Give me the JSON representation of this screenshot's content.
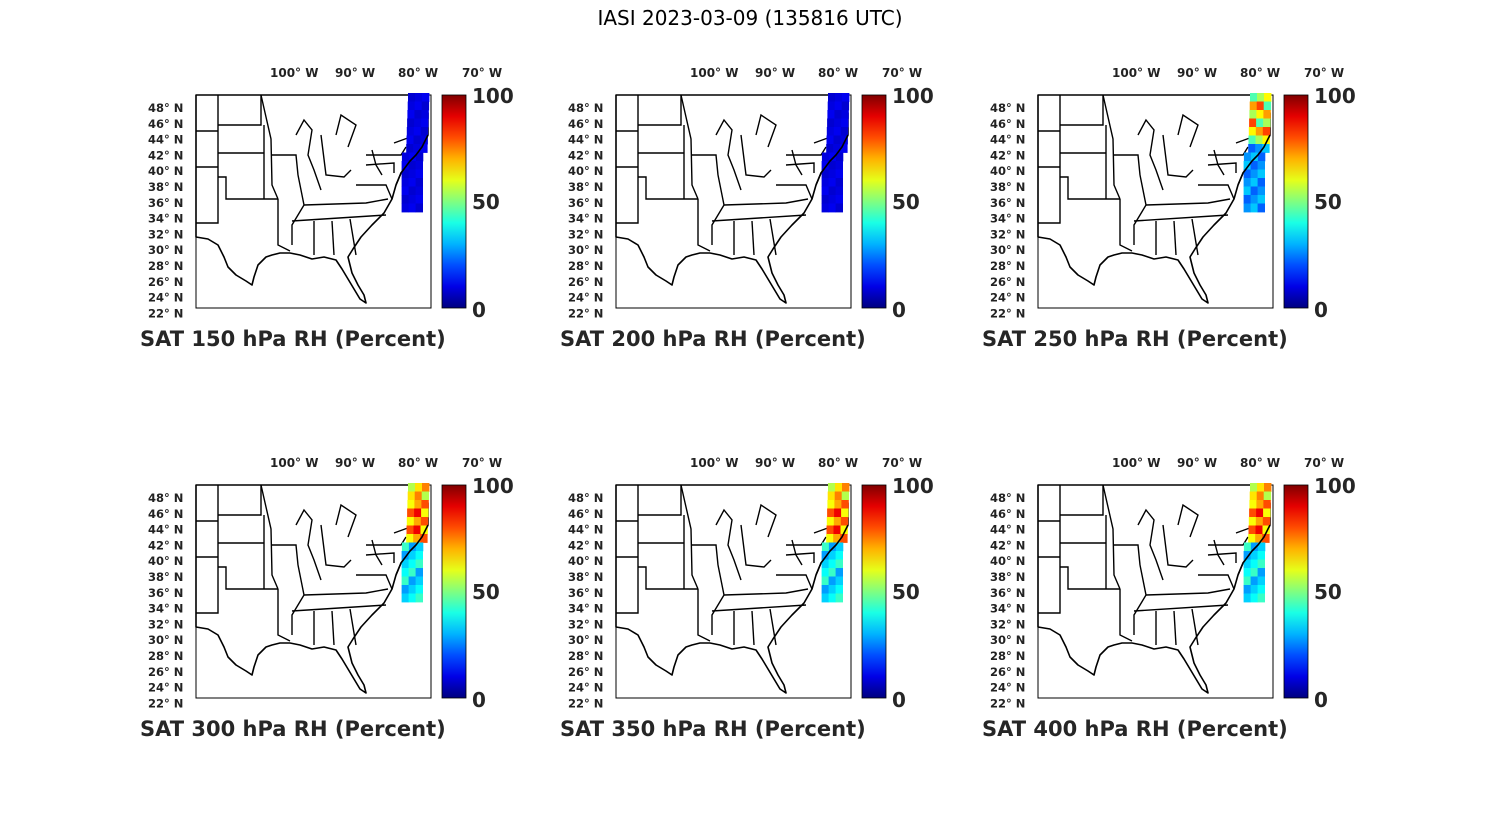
{
  "figure_title": "IASI 2023-03-09 (135816 UTC)",
  "lon_labels": [
    "100° W",
    "90° W",
    "80° W",
    "70° W"
  ],
  "lat_labels": [
    "48° N",
    "46° N",
    "44° N",
    "42° N",
    "40° N",
    "38° N",
    "36° N",
    "34° N",
    "32° N",
    "30° N",
    "28° N",
    "26° N",
    "24° N",
    "22° N"
  ],
  "colorbar": {
    "colormap": "jet",
    "ticks": [
      "100",
      "50",
      "0"
    ],
    "range": [
      0,
      100
    ]
  },
  "panels": [
    {
      "caption": "SAT 150 hPa RH (Percent)",
      "swath_fill": "low-uniform",
      "level_hpa": 150
    },
    {
      "caption": "SAT 200 hPa RH (Percent)",
      "swath_fill": "low-uniform",
      "level_hpa": 200
    },
    {
      "caption": "SAT 250 hPa RH (Percent)",
      "swath_fill": "mixed-low",
      "level_hpa": 250
    },
    {
      "caption": "SAT 300 hPa RH (Percent)",
      "swath_fill": "mixed-high",
      "level_hpa": 300
    },
    {
      "caption": "SAT 350 hPa RH (Percent)",
      "swath_fill": "mixed-high",
      "level_hpa": 350
    },
    {
      "caption": "SAT 400 hPa RH (Percent)",
      "swath_fill": "mixed-high",
      "level_hpa": 400
    }
  ],
  "colors": {
    "swath_low": "#1020c8",
    "swath_mid": "#1aa8f0",
    "swath_high": "#e83018",
    "map_line": "#000000"
  }
}
